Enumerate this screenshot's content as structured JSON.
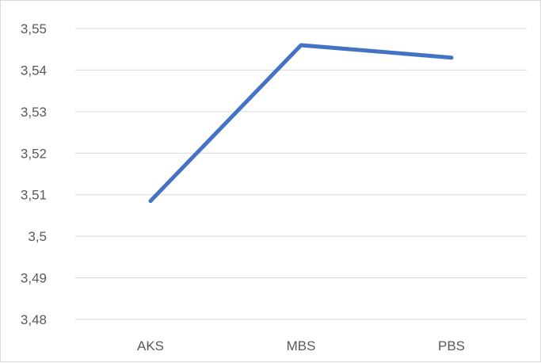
{
  "chart_data": {
    "type": "line",
    "categories": [
      "AKS",
      "MBS",
      "PBS"
    ],
    "series": [
      {
        "values": [
          3.5085,
          3.546,
          3.543
        ]
      }
    ],
    "ylim": [
      3.48,
      3.55
    ],
    "yticks": [
      "3,48",
      "3,49",
      "3,5",
      "3,51",
      "3,52",
      "3,53",
      "3,54",
      "3,55"
    ],
    "grid": true,
    "legend": "none",
    "colors": {
      "line": "#4472c4",
      "grid": "#d9d9d9",
      "text": "#595959"
    }
  }
}
